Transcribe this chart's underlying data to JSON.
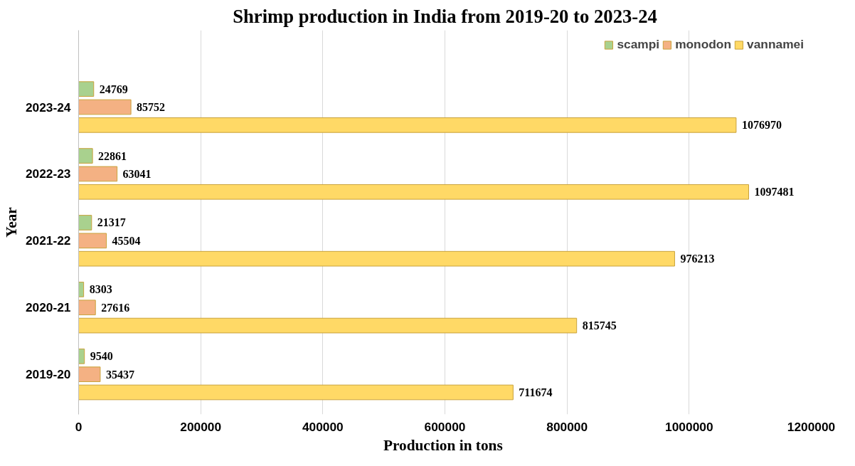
{
  "chart_data": {
    "type": "bar",
    "orientation": "horizontal",
    "title": "Shrimp production in India from 2019-20 to 2023-24",
    "xlabel": "Production in  tons",
    "ylabel": "Year",
    "categories": [
      "2023-24",
      "2022-23",
      "2021-22",
      "2020-21",
      "2019-20"
    ],
    "series": [
      {
        "name": "scampi",
        "color": "#a9d18e",
        "values": [
          24769,
          22861,
          21317,
          8303,
          9540
        ]
      },
      {
        "name": "monodon",
        "color": "#f4b183",
        "values": [
          85752,
          63041,
          45504,
          27616,
          35437
        ]
      },
      {
        "name": "vannamei",
        "color": "#ffd966",
        "values": [
          1076970,
          1097481,
          976213,
          815745,
          711674
        ]
      }
    ],
    "xlim": [
      0,
      1200000
    ],
    "xticks": [
      0,
      200000,
      400000,
      600000,
      800000,
      1000000,
      1200000
    ],
    "grid": "x",
    "legend": "top right",
    "data_labels": true
  }
}
